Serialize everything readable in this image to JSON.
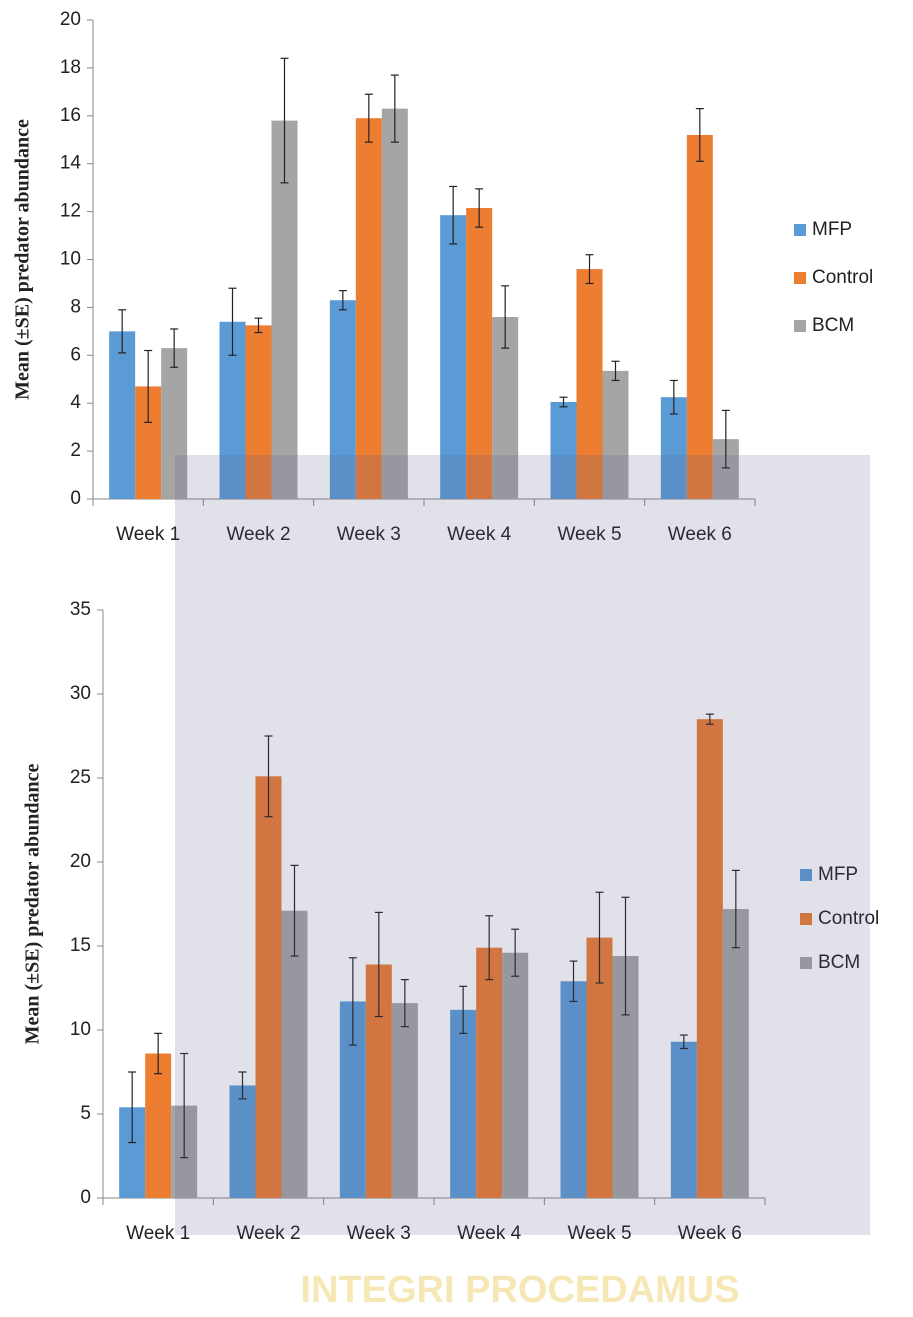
{
  "chart_data": [
    {
      "type": "bar",
      "y_label": "Mean (±SE) predator abundance",
      "categories": [
        "Week 1",
        "Week 2",
        "Week 3",
        "Week 4",
        "Week 5",
        "Week 6"
      ],
      "ylim": [
        0,
        20
      ],
      "yticks": [
        0,
        2,
        4,
        6,
        8,
        10,
        12,
        14,
        16,
        18,
        20
      ],
      "grid": false,
      "legend": "right",
      "series": [
        {
          "name": "MFP",
          "color": "#5b9bd5",
          "values": [
            7.0,
            7.4,
            8.3,
            11.85,
            4.05,
            4.25
          ],
          "errors": [
            0.9,
            1.4,
            0.4,
            1.2,
            0.2,
            0.7
          ]
        },
        {
          "name": "Control",
          "color": "#ed7d31",
          "values": [
            4.7,
            7.25,
            15.9,
            12.15,
            9.6,
            15.2
          ],
          "errors": [
            1.5,
            0.3,
            1.0,
            0.8,
            0.6,
            1.1
          ]
        },
        {
          "name": "BCM",
          "color": "#a5a5a5",
          "values": [
            6.3,
            15.8,
            16.3,
            7.6,
            5.35,
            2.5
          ],
          "errors": [
            0.8,
            2.6,
            1.4,
            1.3,
            0.4,
            1.2
          ]
        }
      ]
    },
    {
      "type": "bar",
      "y_label": "Mean (±SE) predator abundance",
      "categories": [
        "Week 1",
        "Week 2",
        "Week 3",
        "Week 4",
        "Week 5",
        "Week 6"
      ],
      "ylim": [
        0,
        35
      ],
      "yticks": [
        0,
        5,
        10,
        15,
        20,
        25,
        30,
        35
      ],
      "grid": false,
      "legend": "right",
      "series": [
        {
          "name": "MFP",
          "color": "#5b9bd5",
          "values": [
            5.4,
            6.7,
            11.7,
            11.2,
            12.9,
            9.3
          ],
          "errors": [
            2.1,
            0.8,
            2.6,
            1.4,
            1.2,
            0.4
          ]
        },
        {
          "name": "Control",
          "color": "#ed7d31",
          "values": [
            8.6,
            25.1,
            13.9,
            14.9,
            15.5,
            28.5
          ],
          "errors": [
            1.2,
            2.4,
            3.1,
            1.9,
            2.7,
            0.3
          ]
        },
        {
          "name": "BCM",
          "color": "#a5a5a5",
          "values": [
            5.5,
            17.1,
            11.6,
            14.6,
            14.4,
            17.2
          ],
          "errors": [
            3.1,
            2.7,
            1.4,
            1.4,
            3.5,
            2.3
          ]
        }
      ]
    }
  ],
  "watermark": "INTEGRI PROCEDAMUS"
}
